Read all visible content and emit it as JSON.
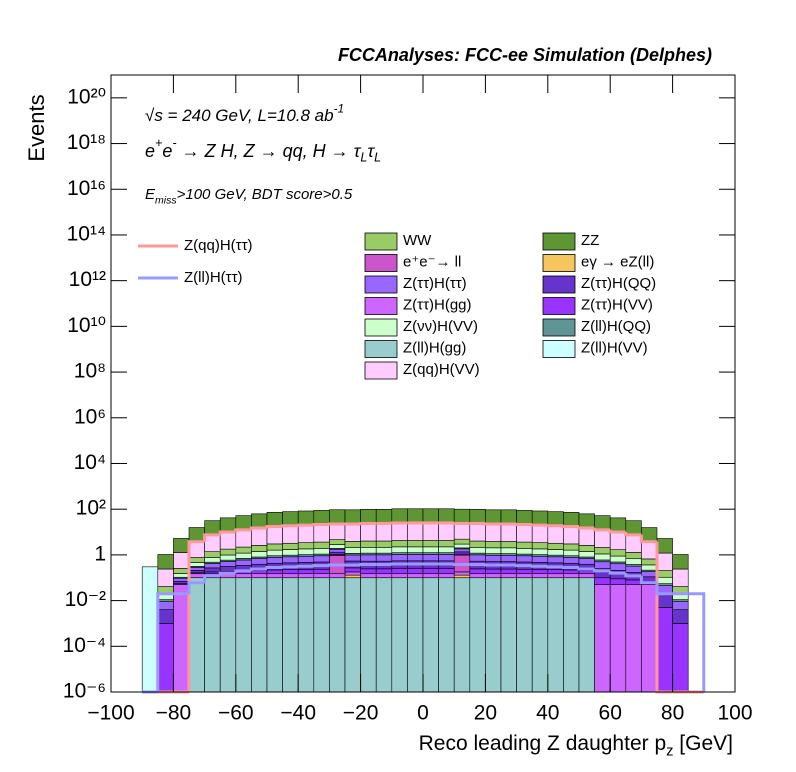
{
  "chart_data": {
    "type": "histogram",
    "title": "FCCAnalyses: FCC-ee Simulation (Delphes)",
    "annotations": [
      [
        {
          "text": "√s = 240 GeV, L=10.8 ab"
        },
        {
          "text": "-1",
          "sup": true
        }
      ],
      [
        {
          "text": "e"
        },
        {
          "text": "+",
          "sup": true
        },
        {
          "text": "e"
        },
        {
          "text": "-",
          "sup": true
        },
        {
          "text": " → Z H, Z  → qq, H  → τ"
        },
        {
          "text": "L",
          "sub": true
        },
        {
          "text": "τ"
        },
        {
          "text": "L",
          "sub": true
        }
      ],
      [
        {
          "text": "E"
        },
        {
          "text": "miss",
          "sub": true
        },
        {
          "text": ">100 GeV, BDT score>0.5"
        }
      ]
    ],
    "xlabel": [
      {
        "text": "Reco leading Z daughter p"
      },
      {
        "text": "z",
        "sub": true
      },
      {
        "text": " [GeV]"
      }
    ],
    "ylabel": "Events",
    "log_y": true,
    "stacked": true,
    "xlim": [
      -100,
      100
    ],
    "ylim": [
      1e-06,
      1e+21
    ],
    "xticks": [
      {
        "value": -100,
        "label": "−100"
      },
      {
        "value": -80,
        "label": "−80"
      },
      {
        "value": -60,
        "label": "−60"
      },
      {
        "value": -40,
        "label": "−40"
      },
      {
        "value": -20,
        "label": "−20"
      },
      0,
      20,
      40,
      60,
      80,
      100
    ],
    "yticks": [
      {
        "value": 1e-06,
        "label": "10⁻⁶"
      },
      {
        "value": 0.0001,
        "label": "10⁻⁴"
      },
      {
        "value": 0.01,
        "label": "10⁻²"
      },
      1,
      {
        "value": 100.0,
        "label": "10²"
      },
      {
        "value": 10000.0,
        "label": "10⁴"
      },
      {
        "value": 1000000.0,
        "label": "10⁶"
      },
      {
        "value": 100000000.0,
        "label": "10⁸"
      },
      {
        "value": 10000000000.0,
        "label": "10¹⁰"
      },
      {
        "value": 1000000000000.0,
        "label": "10¹²"
      },
      {
        "value": 100000000000000.0,
        "label": "10¹⁴"
      },
      {
        "value": 1e+16,
        "label": "10¹⁶"
      },
      {
        "value": 1e+18,
        "label": "10¹⁸"
      },
      {
        "value": 1e+20,
        "label": "10²⁰"
      }
    ],
    "bins": [
      -90,
      -85,
      -80,
      -75,
      -70,
      -65,
      -60,
      -55,
      -50,
      -45,
      -40,
      -35,
      -30,
      -25,
      -20,
      -15,
      -10,
      -5,
      0,
      5,
      10,
      15,
      20,
      25,
      30,
      35,
      40,
      45,
      50,
      55,
      60,
      65,
      70,
      75,
      80,
      85,
      90
    ],
    "series": [
      {
        "name": "Z(ll)H(VV)",
        "color": "#ccffff",
        "values": [
          0.3,
          0,
          0,
          0,
          0,
          0,
          0,
          0,
          0,
          0,
          0,
          0,
          0,
          0,
          0,
          0,
          0,
          0,
          0,
          0,
          0,
          0,
          0,
          0,
          0,
          0,
          0,
          0,
          0,
          0,
          0,
          0,
          0,
          0,
          0,
          0
        ]
      },
      {
        "name": "Z(ll)H(gg)",
        "color": "#99cccc",
        "values": [
          0,
          0,
          0,
          0.1,
          0.1,
          0.1,
          0.1,
          0.1,
          0.1,
          0.1,
          0.1,
          0.1,
          0.1,
          0.1,
          0.1,
          0.1,
          0.1,
          0.1,
          0.1,
          0.1,
          0.1,
          0.1,
          0.1,
          0.1,
          0.1,
          0.1,
          0.1,
          0.1,
          0.1,
          0,
          0,
          0,
          0,
          0,
          0,
          0
        ]
      },
      {
        "name": "eγ → eZ(ll)",
        "color": "#f7c55e",
        "values": [
          0,
          0,
          0,
          0,
          0,
          0,
          0,
          0,
          0,
          0,
          0,
          0,
          0,
          0.03,
          0,
          0,
          0,
          0,
          0,
          0,
          0.03,
          0,
          0,
          0,
          0,
          0,
          0,
          0,
          0,
          0,
          0,
          0,
          0,
          0,
          0,
          0
        ]
      },
      {
        "name": "Z(ττ)H(gg)",
        "color": "#cc66ff",
        "values": [
          0,
          0,
          0.05,
          0.05,
          0.05,
          0.05,
          0.05,
          0.05,
          0.05,
          0.05,
          0.05,
          0.05,
          0.05,
          0.05,
          0.05,
          0.05,
          0.05,
          0.05,
          0.05,
          0.05,
          0.05,
          0.05,
          0.05,
          0.05,
          0.05,
          0.05,
          0.05,
          0.05,
          0.05,
          0.05,
          0.05,
          0.05,
          0.05,
          0,
          0,
          0
        ]
      },
      {
        "name": "e⁺e⁻→ ll",
        "color": "#cc55cc",
        "values": [
          0,
          0,
          0,
          0,
          0,
          0,
          0,
          0,
          0,
          0,
          0,
          0,
          0.8,
          0,
          0,
          0,
          0,
          0,
          0,
          0,
          0.8,
          0,
          0,
          0,
          0,
          0,
          0,
          0,
          0,
          0,
          0,
          0,
          0,
          0,
          0,
          0
        ]
      },
      {
        "name": "Z(ττ)H(VV)",
        "color": "#9933ff",
        "values": [
          0,
          0.001,
          0.005,
          0.015,
          0.03,
          0.04,
          0.05,
          0.06,
          0.07,
          0.075,
          0.08,
          0.085,
          0.09,
          0.09,
          0.095,
          0.095,
          0.1,
          0.1,
          0.1,
          0.1,
          0.095,
          0.095,
          0.09,
          0.09,
          0.085,
          0.08,
          0.075,
          0.07,
          0.06,
          0.05,
          0.04,
          0.03,
          0.015,
          0.005,
          0.001,
          0
        ]
      },
      {
        "name": "Z(ττ)H(QQ)",
        "color": "#6633cc",
        "values": [
          0,
          0.003,
          0.015,
          0.045,
          0.09,
          0.12,
          0.15,
          0.18,
          0.21,
          0.225,
          0.24,
          0.255,
          0.27,
          0.27,
          0.285,
          0.285,
          0.3,
          0.3,
          0.3,
          0.3,
          0.285,
          0.285,
          0.27,
          0.27,
          0.255,
          0.24,
          0.225,
          0.21,
          0.18,
          0.15,
          0.12,
          0.09,
          0.045,
          0.015,
          0.003,
          0
        ]
      },
      {
        "name": "Z(ττ)H(ττ)",
        "color": "#9966ff",
        "values": [
          0,
          0.005,
          0.025,
          0.075,
          0.15,
          0.2,
          0.25,
          0.3,
          0.35,
          0.375,
          0.4,
          0.425,
          0.45,
          0.45,
          0.475,
          0.475,
          0.5,
          0.5,
          0.5,
          0.5,
          0.475,
          0.475,
          0.45,
          0.45,
          0.425,
          0.4,
          0.375,
          0.35,
          0.3,
          0.25,
          0.2,
          0.15,
          0.075,
          0.025,
          0.005,
          0
        ]
      },
      {
        "name": "Z(ll)H(QQ)",
        "color": "#5f9595",
        "values": [
          0,
          0.002,
          0.01,
          0.03,
          0.06,
          0.08,
          0.1,
          0.12,
          0.14,
          0.15,
          0.16,
          0.17,
          0.18,
          0.18,
          0.19,
          0.19,
          0.2,
          0.2,
          0.2,
          0.2,
          0.19,
          0.19,
          0.18,
          0.18,
          0.17,
          0.16,
          0.15,
          0.14,
          0.12,
          0.1,
          0.08,
          0.06,
          0.03,
          0.01,
          0.002,
          0
        ]
      },
      {
        "name": "Z(νν)H(VV)",
        "color": "#ccffcc",
        "values": [
          0,
          0.01,
          0.05,
          0.15,
          0.3,
          0.4,
          0.5,
          0.6,
          0.7,
          0.75,
          0.8,
          0.85,
          0.9,
          0.9,
          0.95,
          0.95,
          1,
          1,
          1,
          1,
          0.95,
          0.95,
          0.9,
          0.9,
          0.85,
          0.8,
          0.75,
          0.7,
          0.6,
          0.5,
          0.4,
          0.3,
          0.15,
          0.05,
          0.01,
          0
        ]
      },
      {
        "name": "WW",
        "color": "#99cc66",
        "values": [
          0,
          0.02,
          0.1,
          0.3,
          0.6,
          0.8,
          1,
          1.2,
          1.4,
          1.5,
          1.6,
          1.7,
          1.8,
          1.8,
          1.9,
          1.9,
          2,
          2,
          2,
          2,
          1.9,
          1.9,
          1.8,
          1.8,
          1.7,
          1.6,
          1.5,
          1.4,
          1.2,
          1,
          0.8,
          0.6,
          0.3,
          0.1,
          0.02,
          0
        ]
      },
      {
        "name": "Z(qq)H(VV)",
        "color": "#ffccff",
        "values": [
          0,
          0.2,
          1,
          3,
          6,
          8,
          10,
          12,
          14,
          15,
          16,
          17,
          18,
          18,
          19,
          19,
          20,
          20,
          20,
          20,
          19,
          19,
          18,
          18,
          17,
          16,
          15,
          14,
          12,
          10,
          8,
          6,
          3,
          1,
          0.2,
          0
        ]
      },
      {
        "name": "ZZ",
        "color": "#5d9632",
        "values": [
          0,
          0.8,
          4,
          12,
          24,
          32,
          40,
          48,
          56,
          60,
          64,
          68,
          72,
          72,
          76,
          76,
          80,
          80,
          80,
          80,
          76,
          76,
          72,
          72,
          68,
          64,
          60,
          56,
          48,
          40,
          32,
          24,
          12,
          4,
          0.8,
          0
        ]
      }
    ],
    "lines": [
      {
        "name": "Z(qq)H(ττ)",
        "color": "#ff9999",
        "values": [
          0,
          0,
          0,
          3.75,
          7.5,
          10,
          12.5,
          15,
          17.5,
          18.75,
          20,
          21.25,
          22.5,
          22.5,
          23.75,
          23.75,
          25,
          25,
          25,
          25,
          23.75,
          23.75,
          22.5,
          22.5,
          21.25,
          20,
          18.75,
          17.5,
          15,
          12.5,
          10,
          7.5,
          3.75,
          0,
          0,
          0
        ]
      },
      {
        "name": "Z(ll)H(ττ)",
        "color": "#9999ff",
        "values": [
          0,
          0.02,
          0.02,
          0.06,
          0.12,
          0.16,
          0.2,
          0.24,
          0.28,
          0.3,
          0.32,
          0.34,
          0.36,
          0.36,
          0.38,
          0.38,
          0.4,
          0.4,
          0.4,
          0.4,
          0.38,
          0.38,
          0.36,
          0.36,
          0.34,
          0.32,
          0.3,
          0.28,
          0.24,
          0.2,
          0.16,
          0.12,
          0.06,
          0.02,
          0.02,
          0.02
        ]
      }
    ]
  }
}
